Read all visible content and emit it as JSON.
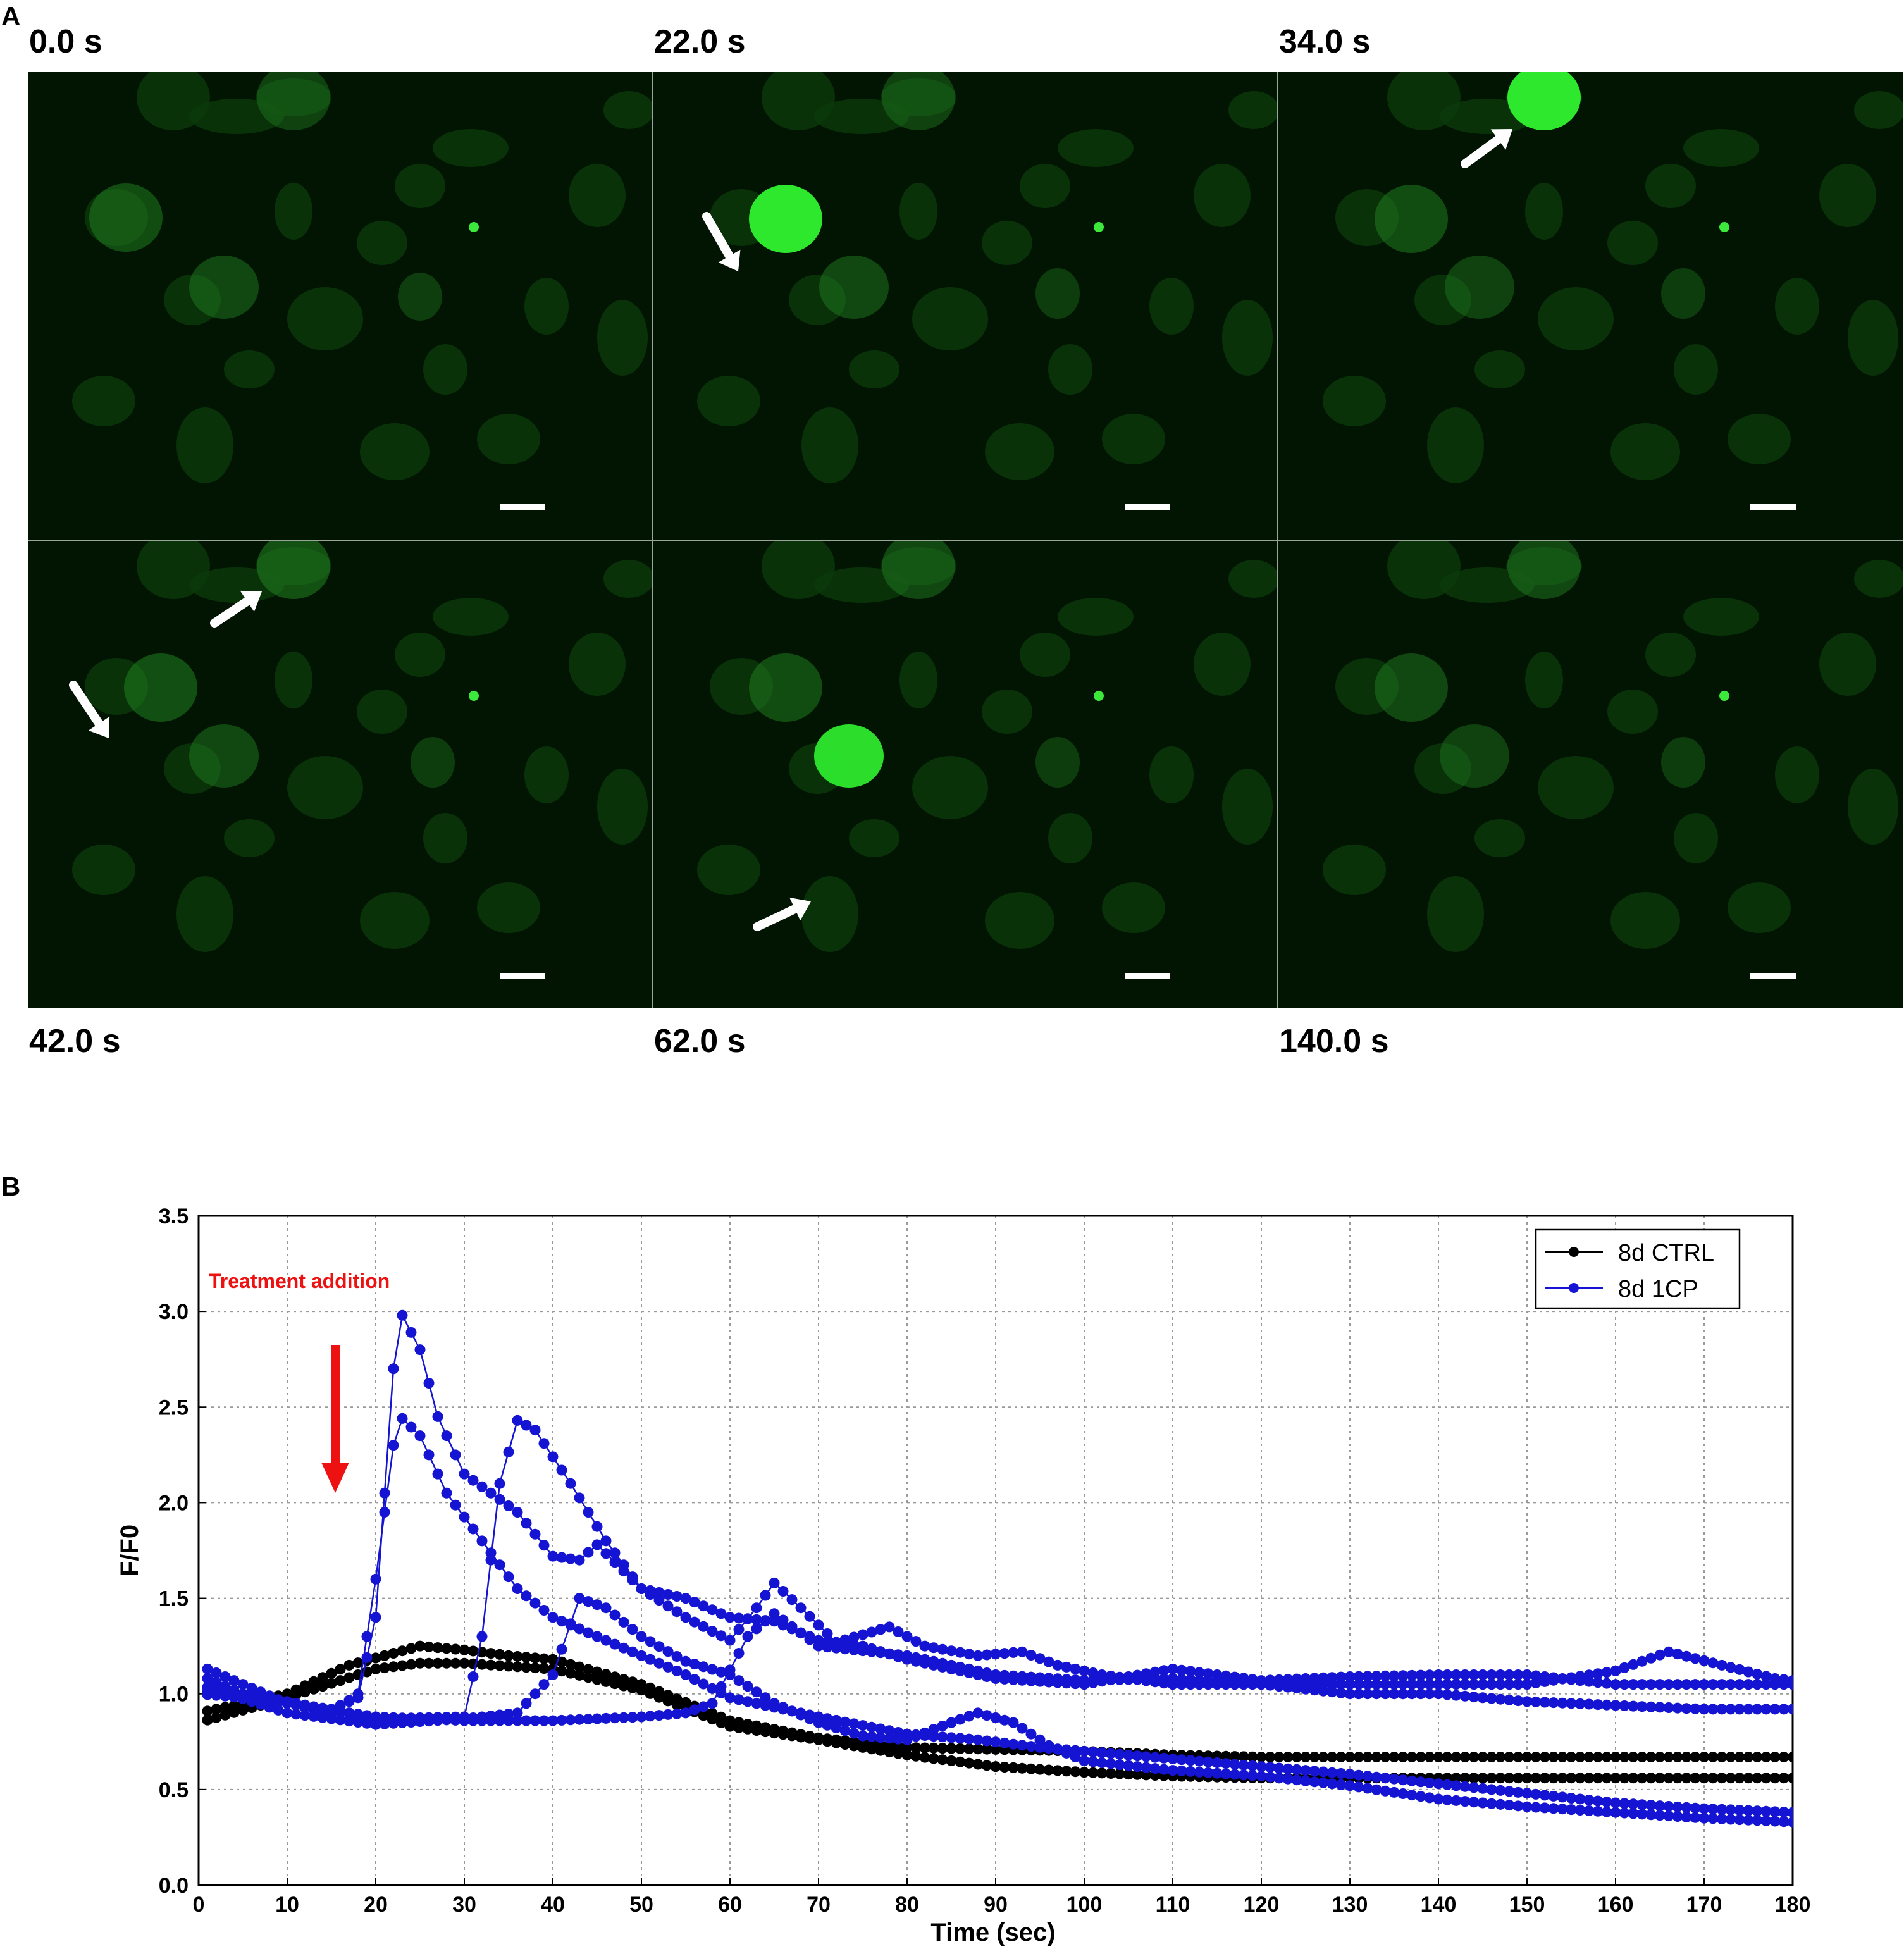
{
  "panel_a": {
    "letter": "A",
    "frames": [
      {
        "time": "0.0 s"
      },
      {
        "time": "22.0 s"
      },
      {
        "time": "34.0 s"
      },
      {
        "time": "42.0 s"
      },
      {
        "time": "62.0 s"
      },
      {
        "time": "140.0 s"
      }
    ],
    "colors": {
      "background": "#021402",
      "cell": "#1f7a1f",
      "bright_cell": "#2ee82e",
      "arrow": "#ffffff",
      "scale_bar": "#ffffff"
    }
  },
  "panel_b": {
    "letter": "B",
    "annotation": "Treatment addition",
    "annotation_color": "#ee1111",
    "chart_data": {
      "type": "line",
      "title": "",
      "xlabel": "Time (sec)",
      "ylabel": "F/F0",
      "xlim": [
        0,
        180
      ],
      "ylim": [
        0,
        3.5
      ],
      "xticks": [
        "0",
        "10",
        "20",
        "30",
        "40",
        "50",
        "60",
        "70",
        "80",
        "90",
        "100",
        "110",
        "120",
        "130",
        "140",
        "150",
        "160",
        "170",
        "180"
      ],
      "yticks": [
        "0.0",
        "0.5",
        "1.0",
        "1.5",
        "2.0",
        "2.5",
        "3.0",
        "3.5"
      ],
      "grid": true,
      "legend_position": "top-right",
      "legend": [
        {
          "label": "8d CTRL",
          "color": "#000000"
        },
        {
          "label": "8d 1CP",
          "color": "#1414d2"
        }
      ],
      "series": [
        {
          "group": "8d CTRL",
          "color": "#000000",
          "points": [
            [
              0,
              0.85
            ],
            [
              10,
              0.98
            ],
            [
              20,
              1.13
            ],
            [
              25,
              1.16
            ],
            [
              30,
              1.16
            ],
            [
              40,
              1.13
            ],
            [
              50,
              1.02
            ],
            [
              60,
              0.83
            ],
            [
              70,
              0.76
            ],
            [
              80,
              0.68
            ],
            [
              90,
              0.62
            ],
            [
              100,
              0.59
            ],
            [
              110,
              0.57
            ],
            [
              120,
              0.56
            ],
            [
              130,
              0.56
            ],
            [
              140,
              0.56
            ],
            [
              150,
              0.56
            ],
            [
              160,
              0.56
            ],
            [
              170,
              0.56
            ],
            [
              180,
              0.56
            ]
          ]
        },
        {
          "group": "8d CTRL",
          "color": "#000000",
          "points": [
            [
              0,
              0.9
            ],
            [
              10,
              1.0
            ],
            [
              17,
              1.15
            ],
            [
              25,
              1.25
            ],
            [
              30,
              1.23
            ],
            [
              35,
              1.2
            ],
            [
              40,
              1.18
            ],
            [
              50,
              1.05
            ],
            [
              60,
              0.86
            ],
            [
              70,
              0.77
            ],
            [
              80,
              0.72
            ],
            [
              90,
              0.71
            ],
            [
              100,
              0.7
            ],
            [
              110,
              0.68
            ],
            [
              120,
              0.67
            ],
            [
              130,
              0.67
            ],
            [
              140,
              0.67
            ],
            [
              150,
              0.67
            ],
            [
              160,
              0.67
            ],
            [
              170,
              0.67
            ],
            [
              180,
              0.67
            ]
          ]
        },
        {
          "group": "8d 1CP",
          "color": "#1414d2",
          "points": [
            [
              0,
              1.15
            ],
            [
              5,
              1.05
            ],
            [
              10,
              0.95
            ],
            [
              15,
              0.92
            ],
            [
              18,
              0.98
            ],
            [
              20,
              1.4
            ],
            [
              22,
              2.7
            ],
            [
              23,
              2.98
            ],
            [
              25,
              2.8
            ],
            [
              27,
              2.45
            ],
            [
              30,
              2.15
            ],
            [
              33,
              2.05
            ],
            [
              36,
              1.95
            ],
            [
              40,
              1.72
            ],
            [
              43,
              1.7
            ],
            [
              45,
              1.78
            ],
            [
              50,
              1.55
            ],
            [
              55,
              1.4
            ],
            [
              60,
              1.28
            ],
            [
              63,
              1.45
            ],
            [
              65,
              1.58
            ],
            [
              68,
              1.45
            ],
            [
              72,
              1.27
            ],
            [
              78,
              1.35
            ],
            [
              82,
              1.25
            ],
            [
              88,
              1.2
            ],
            [
              93,
              1.22
            ],
            [
              97,
              1.15
            ],
            [
              102,
              1.1
            ],
            [
              110,
              1.05
            ],
            [
              120,
              1.05
            ],
            [
              130,
              1.05
            ],
            [
              140,
              1.05
            ],
            [
              150,
              1.05
            ],
            [
              160,
              1.12
            ],
            [
              166,
              1.22
            ],
            [
              172,
              1.15
            ],
            [
              178,
              1.08
            ],
            [
              180,
              1.07
            ]
          ]
        },
        {
          "group": "8d 1CP",
          "color": "#1414d2",
          "points": [
            [
              0,
              1.1
            ],
            [
              5,
              1.0
            ],
            [
              10,
              0.95
            ],
            [
              15,
              0.9
            ],
            [
              18,
              1.0
            ],
            [
              20,
              1.6
            ],
            [
              22,
              2.3
            ],
            [
              23,
              2.44
            ],
            [
              25,
              2.35
            ],
            [
              28,
              2.05
            ],
            [
              32,
              1.8
            ],
            [
              36,
              1.55
            ],
            [
              40,
              1.4
            ],
            [
              45,
              1.3
            ],
            [
              50,
              1.2
            ],
            [
              55,
              1.1
            ],
            [
              60,
              0.98
            ],
            [
              70,
              0.88
            ],
            [
              80,
              0.79
            ],
            [
              88,
              0.76
            ],
            [
              95,
              0.72
            ],
            [
              100,
              0.7
            ],
            [
              110,
              0.66
            ],
            [
              120,
              0.62
            ],
            [
              130,
              0.58
            ],
            [
              140,
              0.53
            ],
            [
              150,
              0.48
            ],
            [
              160,
              0.43
            ],
            [
              170,
              0.4
            ],
            [
              180,
              0.38
            ]
          ]
        },
        {
          "group": "8d 1CP",
          "color": "#1414d2",
          "points": [
            [
              0,
              1.0
            ],
            [
              10,
              0.96
            ],
            [
              20,
              0.87
            ],
            [
              30,
              0.88
            ],
            [
              32,
              1.3
            ],
            [
              34,
              2.1
            ],
            [
              36,
              2.43
            ],
            [
              38,
              2.38
            ],
            [
              42,
              2.1
            ],
            [
              46,
              1.8
            ],
            [
              50,
              1.55
            ],
            [
              55,
              1.5
            ],
            [
              60,
              1.4
            ],
            [
              65,
              1.38
            ],
            [
              70,
              1.28
            ],
            [
              75,
              1.25
            ],
            [
              80,
              1.18
            ],
            [
              90,
              1.08
            ],
            [
              100,
              1.05
            ],
            [
              110,
              1.13
            ],
            [
              120,
              1.07
            ],
            [
              130,
              1.09
            ],
            [
              140,
              1.1
            ],
            [
              150,
              1.1
            ],
            [
              160,
              1.05
            ],
            [
              170,
              1.05
            ],
            [
              180,
              1.05
            ]
          ]
        },
        {
          "group": "8d 1CP",
          "color": "#1414d2",
          "points": [
            [
              0,
              1.05
            ],
            [
              10,
              0.9
            ],
            [
              20,
              0.84
            ],
            [
              30,
              0.87
            ],
            [
              36,
              0.9
            ],
            [
              40,
              1.1
            ],
            [
              43,
              1.5
            ],
            [
              46,
              1.45
            ],
            [
              50,
              1.3
            ],
            [
              55,
              1.17
            ],
            [
              60,
              1.1
            ],
            [
              65,
              0.95
            ],
            [
              70,
              0.85
            ],
            [
              75,
              0.78
            ],
            [
              80,
              0.76
            ],
            [
              85,
              0.85
            ],
            [
              88,
              0.9
            ],
            [
              92,
              0.85
            ],
            [
              96,
              0.73
            ],
            [
              100,
              0.65
            ],
            [
              110,
              0.6
            ],
            [
              120,
              0.57
            ],
            [
              130,
              0.52
            ],
            [
              140,
              0.45
            ],
            [
              150,
              0.41
            ],
            [
              160,
              0.38
            ],
            [
              170,
              0.35
            ],
            [
              180,
              0.33
            ]
          ]
        },
        {
          "group": "8d 1CP",
          "color": "#1414d2",
          "points": [
            [
              0,
              1.02
            ],
            [
              10,
              0.95
            ],
            [
              20,
              0.88
            ],
            [
              30,
              0.86
            ],
            [
              40,
              0.86
            ],
            [
              50,
              0.88
            ],
            [
              55,
              0.9
            ],
            [
              58,
              0.95
            ],
            [
              62,
              1.3
            ],
            [
              65,
              1.42
            ],
            [
              70,
              1.25
            ],
            [
              80,
              1.2
            ],
            [
              90,
              1.1
            ],
            [
              100,
              1.07
            ],
            [
              110,
              1.08
            ],
            [
              120,
              1.05
            ],
            [
              130,
              1.0
            ],
            [
              140,
              1.0
            ],
            [
              150,
              0.96
            ],
            [
              160,
              0.94
            ],
            [
              170,
              0.92
            ],
            [
              180,
              0.92
            ]
          ]
        }
      ]
    }
  }
}
